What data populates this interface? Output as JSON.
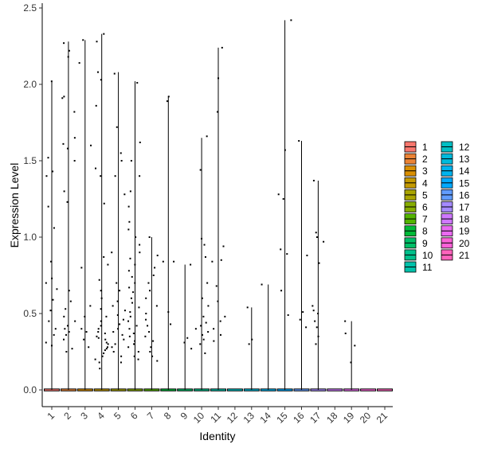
{
  "chart_data": {
    "type": "violin",
    "xlabel": "Identity",
    "ylabel": "Expression Level",
    "ylim": [
      -0.1,
      2.5
    ],
    "y_ticks": [
      "0.0",
      "0.5",
      "1.0",
      "1.5",
      "2.0",
      "2.5"
    ],
    "categories": [
      "1",
      "2",
      "3",
      "4",
      "5",
      "6",
      "7",
      "8",
      "9",
      "10",
      "11",
      "12",
      "13",
      "14",
      "15",
      "16",
      "17",
      "18",
      "19",
      "20",
      "21"
    ],
    "max_values": [
      2.02,
      2.28,
      2.29,
      2.33,
      2.08,
      2.02,
      1.0,
      1.92,
      0.82,
      1.65,
      2.24,
      0.0,
      0.54,
      0.69,
      2.42,
      1.63,
      1.37,
      0.0,
      0.45,
      0.0,
      0.0
    ],
    "points": [
      [
        2.02,
        1.43,
        1.4,
        1.2,
        0.84,
        0.73,
        0.7,
        0.66,
        0.59,
        0.52,
        0.45,
        0.4,
        0.36,
        0.31,
        0.29,
        1.52,
        1.06
      ],
      [
        2.27,
        2.22,
        2.18,
        1.92,
        1.91,
        1.82,
        1.65,
        1.61,
        1.58,
        1.5,
        1.3,
        1.23,
        0.65,
        0.58,
        0.53,
        0.48,
        0.45,
        0.42,
        0.4,
        0.38,
        0.36,
        0.33,
        0.27,
        0.25
      ],
      [
        2.29,
        2.14,
        1.6,
        0.8,
        0.55,
        0.48,
        0.4,
        0.38,
        0.33,
        0.28
      ],
      [
        2.33,
        2.28,
        2.08,
        2.03,
        1.86,
        1.45,
        1.4,
        1.22,
        0.87,
        0.82,
        0.72,
        0.65,
        0.6,
        0.53,
        0.48,
        0.45,
        0.42,
        0.4,
        0.38,
        0.37,
        0.35,
        0.34,
        0.33,
        0.31,
        0.3,
        0.28,
        0.27,
        0.26,
        0.24,
        0.22,
        0.2,
        0.18,
        0.14
      ],
      [
        2.07,
        1.72,
        1.55,
        1.5,
        1.4,
        1.28,
        0.9,
        0.7,
        0.65,
        0.58,
        0.55,
        0.52,
        0.49,
        0.46,
        0.43,
        0.4,
        0.38,
        0.36,
        0.33,
        0.3,
        0.28,
        0.25,
        0.22,
        0.18
      ],
      [
        2.01,
        1.62,
        1.5,
        1.4,
        1.3,
        1.2,
        1.1,
        1.05,
        1.0,
        0.95,
        0.9,
        0.86,
        0.82,
        0.78,
        0.74,
        0.7,
        0.67,
        0.64,
        0.6,
        0.57,
        0.54,
        0.51,
        0.48,
        0.45,
        0.42,
        0.4,
        0.37,
        0.35,
        0.32,
        0.3,
        0.28,
        0.25,
        0.22,
        0.2
      ],
      [
        1.0,
        0.88,
        0.8,
        0.75,
        0.7,
        0.65,
        0.6,
        0.55,
        0.5,
        0.46,
        0.42,
        0.38,
        0.35,
        0.32,
        0.28,
        0.25,
        0.22,
        0.19
      ],
      [
        1.92,
        1.89,
        0.84,
        0.84,
        0.43,
        0.51
      ],
      [
        0.82,
        0.34,
        0.31,
        0.27
      ],
      [
        1.66,
        1.44,
        0.99,
        0.95,
        0.87,
        0.7,
        0.6,
        0.55,
        0.48,
        0.44,
        0.42,
        0.4,
        0.38,
        0.36,
        0.33,
        0.3,
        0.24
      ],
      [
        2.24,
        2.04,
        1.82,
        0.94,
        0.85,
        0.84,
        0.68,
        0.58,
        0.48,
        0.45,
        0.4,
        0.36,
        0.32
      ],
      [],
      [
        0.54,
        0.33,
        0.3
      ],
      [
        0.69
      ],
      [
        2.42,
        1.57,
        1.28,
        1.25,
        0.92,
        0.89,
        0.65,
        0.49
      ],
      [
        1.63,
        0.88,
        0.51,
        0.46,
        0.41
      ],
      [
        1.37,
        1.03,
        1.0,
        0.97,
        0.83,
        0.55,
        0.52,
        0.5,
        0.45,
        0.41,
        0.35,
        0.3
      ],
      [],
      [
        0.45,
        0.37,
        0.29,
        0.18
      ],
      [],
      []
    ],
    "legend": {
      "title": "",
      "placement": "right",
      "labels": [
        "1",
        "2",
        "3",
        "4",
        "5",
        "6",
        "7",
        "8",
        "9",
        "10",
        "11",
        "12",
        "13",
        "14",
        "15",
        "16",
        "17",
        "18",
        "19",
        "20",
        "21"
      ],
      "colors": [
        "#F8766D",
        "#EB8335",
        "#DA8F00",
        "#C49A00",
        "#A9A400",
        "#86AC00",
        "#53B400",
        "#00BA38",
        "#00BE67",
        "#00C08B",
        "#00C1AA",
        "#00BFC4",
        "#00BBDC",
        "#00B4EF",
        "#00A9FF",
        "#619CFF",
        "#A58AFF",
        "#CF78FF",
        "#EA6AF1",
        "#FB61D7",
        "#FF62BC"
      ]
    }
  }
}
